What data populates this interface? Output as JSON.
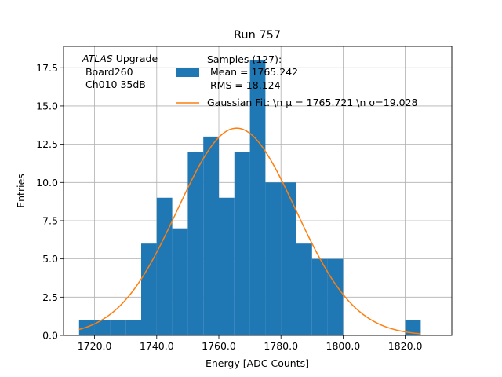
{
  "chart_data": {
    "type": "bar",
    "title": "Run 757",
    "xlabel": "Energy [ADC Counts]",
    "ylabel": "Entries",
    "xlim": [
      1710,
      1835
    ],
    "ylim": [
      0,
      18.9
    ],
    "xticks": [
      1720,
      1740,
      1760,
      1780,
      1800,
      1820
    ],
    "xtick_labels": [
      "1720.0",
      "1740.0",
      "1760.0",
      "1780.0",
      "1800.0",
      "1820.0"
    ],
    "yticks": [
      0,
      2.5,
      5,
      7.5,
      10,
      12.5,
      15,
      17.5
    ],
    "ytick_labels": [
      "0.0",
      "2.5",
      "5.0",
      "7.5",
      "10.0",
      "12.5",
      "15.0",
      "17.5"
    ],
    "grid": true,
    "histogram": {
      "bin_edges": [
        1715,
        1720,
        1725,
        1730,
        1735,
        1740,
        1745,
        1750,
        1755,
        1760,
        1765,
        1770,
        1775,
        1780,
        1785,
        1790,
        1795,
        1800,
        1805,
        1810,
        1815,
        1820,
        1825
      ],
      "counts": [
        1,
        1,
        1,
        1,
        6,
        9,
        7,
        12,
        13,
        9,
        12,
        18,
        10,
        10,
        6,
        5,
        5,
        0,
        0,
        0,
        0,
        1
      ],
      "color": "#1f77b4"
    },
    "fit": {
      "type": "gaussian",
      "mu": 1765.721,
      "sigma": 19.028,
      "amplitude": 13.55,
      "x_range": [
        1715,
        1825
      ],
      "color": "#ff7f0e"
    },
    "annotation_lines": [
      "ATLAS Upgrade",
      " Board260",
      " Ch010 35dB"
    ],
    "legend": {
      "position": "top-right",
      "entries": [
        {
          "kind": "bar",
          "lines": [
            "Samples (127):",
            " Mean = 1765.242",
            " RMS = 18.124"
          ]
        },
        {
          "kind": "line",
          "lines": [
            "Gaussian Fit: \\n μ = 1765.721 \\n σ=19.028"
          ]
        }
      ]
    }
  }
}
